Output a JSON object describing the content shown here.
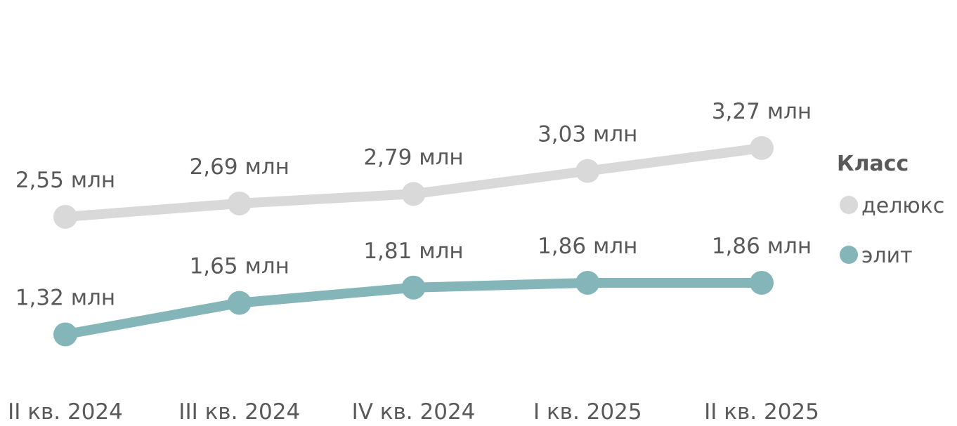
{
  "chart_data": {
    "type": "line",
    "categories": [
      "II кв. 2024",
      "III кв. 2024",
      "IV кв. 2024",
      "I кв. 2025",
      "II кв. 2025"
    ],
    "series": [
      {
        "name": "делюкс",
        "color": "#d9d9d9",
        "values": [
          2.55,
          2.69,
          2.79,
          3.03,
          3.27
        ],
        "labels": [
          "2,55 млн",
          "2,69 млн",
          "2,79 млн",
          "3,03 млн",
          "3,27 млн"
        ]
      },
      {
        "name": "элит",
        "color": "#84b5b9",
        "values": [
          1.32,
          1.65,
          1.81,
          1.86,
          1.86
        ],
        "labels": [
          "1,32 млн",
          "1,65 млн",
          "1,81 млн",
          "1,86 млн",
          "1,86 млн"
        ]
      }
    ],
    "legend": {
      "title": "Класс",
      "position": "right"
    },
    "grid": false,
    "ylim": [
      0,
      3.5
    ]
  }
}
